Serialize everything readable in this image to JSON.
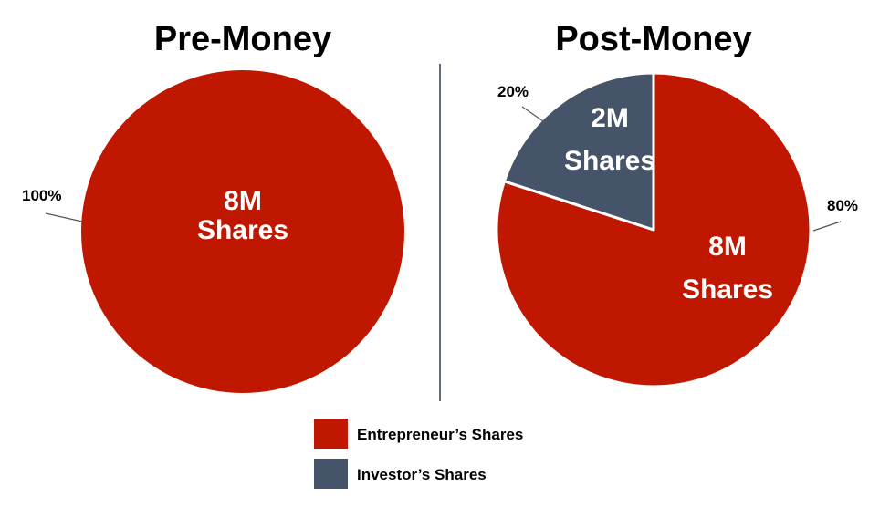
{
  "colors": {
    "entrepreneur": "#C01800",
    "investor": "#46546A",
    "divider": "#2E3B4E",
    "leader": "#555555"
  },
  "chart_data": [
    {
      "type": "pie",
      "title": "Pre-Money",
      "slices": [
        {
          "name": "Entrepreneur's Shares",
          "value": 100,
          "percent_label": "100%",
          "inner_label": [
            "8M",
            "Shares"
          ],
          "color_key": "entrepreneur"
        }
      ]
    },
    {
      "type": "pie",
      "title": "Post-Money",
      "slices": [
        {
          "name": "Entrepreneur's Shares",
          "value": 80,
          "percent_label": "80%",
          "inner_label": [
            "8M",
            "Shares"
          ],
          "color_key": "entrepreneur"
        },
        {
          "name": "Investor's Shares",
          "value": 20,
          "percent_label": "20%",
          "inner_label": [
            "2M",
            "Shares"
          ],
          "color_key": "investor"
        }
      ]
    }
  ],
  "legend": {
    "items": [
      {
        "label": "Entrepreneur’s Shares",
        "color_key": "entrepreneur"
      },
      {
        "label": "Investor’s Shares",
        "color_key": "investor"
      }
    ]
  }
}
